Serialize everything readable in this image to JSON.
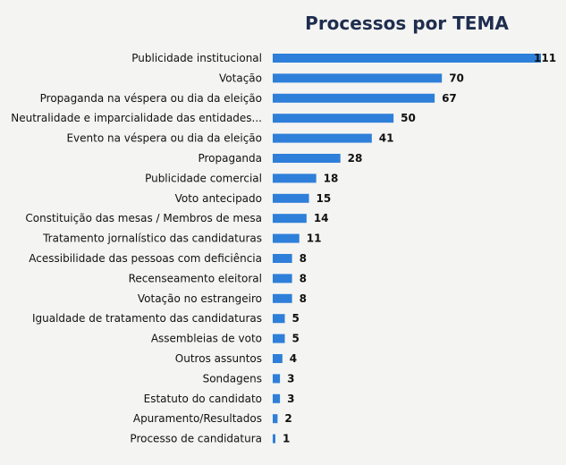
{
  "chart_data": {
    "type": "bar",
    "orientation": "horizontal",
    "title": "Processos por TEMA",
    "xlabel": "",
    "ylabel": "",
    "xlim": [
      0,
      111
    ],
    "grid": false,
    "bar_color": "#2e7fd9",
    "categories": [
      "Publicidade institucional",
      "Votação",
      "Propaganda na véspera ou dia da eleição",
      "Neutralidade e imparcialidade das entidades...",
      "Evento na véspera ou dia da eleição",
      "Propaganda",
      "Publicidade comercial",
      "Voto antecipado",
      "Constituição das mesas / Membros de mesa",
      "Tratamento jornalístico das candidaturas",
      "Acessibilidade das pessoas com deficiência",
      "Recenseamento eleitoral",
      "Votação no estrangeiro",
      "Igualdade de tratamento das candidaturas",
      "Assembleias de voto",
      "Outros assuntos",
      "Sondagens",
      "Estatuto do candidato",
      "Apuramento/Resultados",
      "Processo de candidatura"
    ],
    "values": [
      111,
      70,
      67,
      50,
      41,
      28,
      18,
      15,
      14,
      11,
      8,
      8,
      8,
      5,
      5,
      4,
      3,
      3,
      2,
      1
    ]
  }
}
